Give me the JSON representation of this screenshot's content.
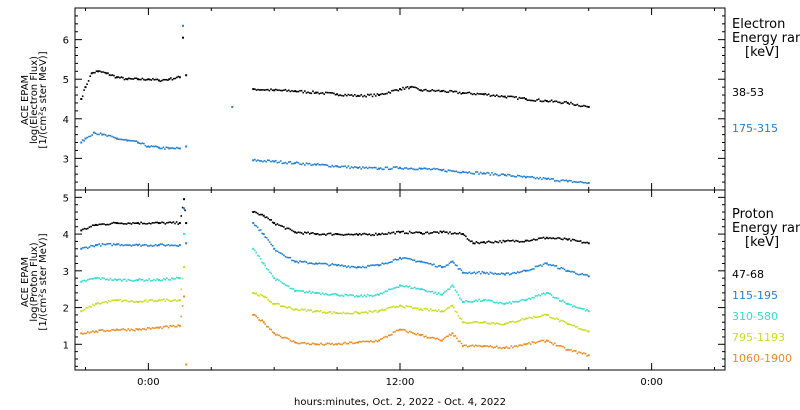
{
  "chart_data": [
    {
      "type": "scatter",
      "panel": "electron",
      "ylabel_lines": [
        "ACE EPAM",
        "log(Electron Flux)",
        "[1/(cm²s ster MeV)]"
      ],
      "legend_title": [
        "Electron",
        "Energy range",
        "[keV]"
      ],
      "ylim": [
        2.2,
        6.8
      ],
      "yticks": [
        3,
        4,
        5,
        6
      ],
      "series": [
        {
          "name": "38-53",
          "color": "#000000",
          "points": [
            [
              -3.2,
              4.5
            ],
            [
              -3.0,
              4.8
            ],
            [
              -2.7,
              5.15
            ],
            [
              -2.4,
              5.2
            ],
            [
              -2.0,
              5.15
            ],
            [
              -1.5,
              5.05
            ],
            [
              -1.0,
              5.0
            ],
            [
              -0.5,
              5.0
            ],
            [
              0.0,
              5.0
            ],
            [
              0.5,
              4.97
            ],
            [
              1.0,
              5.0
            ],
            [
              1.5,
              5.05
            ],
            [
              1.65,
              6.05
            ],
            [
              1.8,
              5.1
            ]
          ],
          "points_b": [
            [
              5.0,
              4.75
            ],
            [
              6.0,
              4.72
            ],
            [
              7.0,
              4.7
            ],
            [
              8.0,
              4.66
            ],
            [
              9.0,
              4.62
            ],
            [
              10.0,
              4.58
            ],
            [
              11.0,
              4.6
            ],
            [
              12.0,
              4.75
            ],
            [
              12.5,
              4.8
            ],
            [
              13.0,
              4.72
            ],
            [
              14.0,
              4.7
            ],
            [
              15.0,
              4.65
            ],
            [
              16.0,
              4.62
            ],
            [
              17.0,
              4.56
            ],
            [
              18.0,
              4.5
            ],
            [
              19.0,
              4.45
            ],
            [
              20.0,
              4.4
            ],
            [
              21.0,
              4.3
            ]
          ]
        },
        {
          "name": "175-315",
          "color": "#1f7fd4",
          "points": [
            [
              -3.2,
              3.4
            ],
            [
              -3.0,
              3.5
            ],
            [
              -2.6,
              3.65
            ],
            [
              -2.2,
              3.6
            ],
            [
              -1.5,
              3.5
            ],
            [
              -1.0,
              3.45
            ],
            [
              -0.5,
              3.4
            ],
            [
              0.0,
              3.3
            ],
            [
              0.5,
              3.27
            ],
            [
              1.0,
              3.25
            ],
            [
              1.5,
              3.25
            ],
            [
              1.65,
              6.35
            ],
            [
              1.8,
              3.3
            ],
            [
              4.0,
              4.3
            ]
          ],
          "points_b": [
            [
              5.0,
              2.95
            ],
            [
              6.0,
              2.92
            ],
            [
              7.0,
              2.88
            ],
            [
              8.0,
              2.84
            ],
            [
              9.0,
              2.8
            ],
            [
              10.0,
              2.76
            ],
            [
              11.0,
              2.74
            ],
            [
              12.0,
              2.76
            ],
            [
              13.0,
              2.74
            ],
            [
              14.0,
              2.7
            ],
            [
              15.0,
              2.66
            ],
            [
              16.0,
              2.62
            ],
            [
              17.0,
              2.58
            ],
            [
              18.0,
              2.52
            ],
            [
              19.0,
              2.48
            ],
            [
              20.0,
              2.42
            ],
            [
              21.0,
              2.38
            ]
          ]
        }
      ]
    },
    {
      "type": "scatter",
      "panel": "proton",
      "ylabel_lines": [
        "ACE EPAM",
        "log(Proton Flux)",
        "[1/(cm²s ster MeV)]"
      ],
      "legend_title": [
        "Proton",
        "Energy range",
        "[keV]"
      ],
      "ylim": [
        0.3,
        5.2
      ],
      "yticks": [
        1,
        2,
        3,
        4,
        5
      ],
      "series": [
        {
          "name": "47-68",
          "color": "#000000",
          "points": [
            [
              -3.2,
              4.1
            ],
            [
              -2.5,
              4.25
            ],
            [
              -1.5,
              4.3
            ],
            [
              -0.5,
              4.3
            ],
            [
              0.5,
              4.3
            ],
            [
              1.5,
              4.3
            ],
            [
              1.7,
              4.95
            ],
            [
              1.8,
              4.3
            ]
          ],
          "points_b": [
            [
              5.0,
              4.6
            ],
            [
              5.5,
              4.5
            ],
            [
              6.0,
              4.3
            ],
            [
              7.0,
              4.05
            ],
            [
              8.0,
              4.0
            ],
            [
              9.0,
              4.0
            ],
            [
              10.0,
              3.98
            ],
            [
              11.0,
              4.0
            ],
            [
              12.0,
              4.05
            ],
            [
              13.0,
              4.03
            ],
            [
              14.0,
              4.05
            ],
            [
              15.0,
              4.0
            ],
            [
              15.5,
              3.75
            ],
            [
              16.0,
              3.78
            ],
            [
              17.0,
              3.8
            ],
            [
              18.0,
              3.82
            ],
            [
              19.0,
              3.9
            ],
            [
              20.0,
              3.85
            ],
            [
              21.0,
              3.75
            ]
          ]
        },
        {
          "name": "115-195",
          "color": "#1f7fd4",
          "points": [
            [
              -3.2,
              3.6
            ],
            [
              -2.5,
              3.7
            ],
            [
              -1.5,
              3.72
            ],
            [
              -0.5,
              3.7
            ],
            [
              0.5,
              3.7
            ],
            [
              1.5,
              3.7
            ],
            [
              1.7,
              4.7
            ],
            [
              1.8,
              3.75
            ]
          ],
          "points_b": [
            [
              5.0,
              4.3
            ],
            [
              5.5,
              4.0
            ],
            [
              6.0,
              3.6
            ],
            [
              7.0,
              3.25
            ],
            [
              8.0,
              3.2
            ],
            [
              9.0,
              3.15
            ],
            [
              10.0,
              3.1
            ],
            [
              11.0,
              3.15
            ],
            [
              12.0,
              3.35
            ],
            [
              13.0,
              3.25
            ],
            [
              14.0,
              3.1
            ],
            [
              14.5,
              3.25
            ],
            [
              15.0,
              2.95
            ],
            [
              16.0,
              2.95
            ],
            [
              17.0,
              2.9
            ],
            [
              18.0,
              3.0
            ],
            [
              19.0,
              3.2
            ],
            [
              20.0,
              3.0
            ],
            [
              21.0,
              2.85
            ]
          ]
        },
        {
          "name": "310-580",
          "color": "#33dcd4",
          "points": [
            [
              -3.2,
              2.7
            ],
            [
              -2.5,
              2.8
            ],
            [
              -1.5,
              2.75
            ],
            [
              -0.5,
              2.75
            ],
            [
              0.5,
              2.75
            ],
            [
              1.5,
              2.8
            ],
            [
              1.7,
              4.0
            ]
          ],
          "points_b": [
            [
              5.0,
              3.6
            ],
            [
              5.5,
              3.2
            ],
            [
              6.0,
              2.8
            ],
            [
              7.0,
              2.45
            ],
            [
              8.0,
              2.4
            ],
            [
              9.0,
              2.35
            ],
            [
              10.0,
              2.3
            ],
            [
              11.0,
              2.35
            ],
            [
              12.0,
              2.6
            ],
            [
              13.0,
              2.5
            ],
            [
              14.0,
              2.35
            ],
            [
              14.5,
              2.6
            ],
            [
              15.0,
              2.15
            ],
            [
              16.0,
              2.2
            ],
            [
              17.0,
              2.1
            ],
            [
              18.0,
              2.2
            ],
            [
              19.0,
              2.4
            ],
            [
              20.0,
              2.1
            ],
            [
              21.0,
              1.9
            ]
          ]
        },
        {
          "name": "795-1193",
          "color": "#c8dc1e",
          "points": [
            [
              -3.2,
              1.9
            ],
            [
              -2.5,
              2.1
            ],
            [
              -1.5,
              2.2
            ],
            [
              -0.5,
              2.15
            ],
            [
              0.5,
              2.2
            ],
            [
              1.5,
              2.2
            ],
            [
              1.7,
              3.1
            ]
          ],
          "points_b": [
            [
              5.0,
              2.4
            ],
            [
              5.5,
              2.3
            ],
            [
              6.0,
              2.1
            ],
            [
              7.0,
              1.95
            ],
            [
              8.0,
              1.9
            ],
            [
              9.0,
              1.85
            ],
            [
              10.0,
              1.85
            ],
            [
              11.0,
              1.9
            ],
            [
              12.0,
              2.05
            ],
            [
              13.0,
              1.95
            ],
            [
              14.0,
              1.9
            ],
            [
              14.5,
              2.05
            ],
            [
              15.0,
              1.6
            ],
            [
              16.0,
              1.6
            ],
            [
              17.0,
              1.55
            ],
            [
              18.0,
              1.7
            ],
            [
              19.0,
              1.8
            ],
            [
              20.0,
              1.55
            ],
            [
              21.0,
              1.35
            ]
          ]
        },
        {
          "name": "1060-1900",
          "color": "#f08a1e",
          "points": [
            [
              -3.2,
              1.3
            ],
            [
              -2.5,
              1.35
            ],
            [
              -1.5,
              1.4
            ],
            [
              -0.5,
              1.4
            ],
            [
              0.5,
              1.45
            ],
            [
              1.5,
              1.5
            ],
            [
              1.7,
              2.3
            ],
            [
              1.8,
              0.45
            ]
          ],
          "points_b": [
            [
              5.0,
              1.8
            ],
            [
              5.5,
              1.6
            ],
            [
              6.0,
              1.3
            ],
            [
              7.0,
              1.05
            ],
            [
              8.0,
              1.0
            ],
            [
              9.0,
              1.0
            ],
            [
              10.0,
              1.05
            ],
            [
              11.0,
              1.1
            ],
            [
              12.0,
              1.4
            ],
            [
              13.0,
              1.25
            ],
            [
              14.0,
              1.1
            ],
            [
              14.5,
              1.3
            ],
            [
              15.0,
              0.95
            ],
            [
              16.0,
              0.95
            ],
            [
              17.0,
              0.9
            ],
            [
              18.0,
              1.0
            ],
            [
              19.0,
              1.1
            ],
            [
              20.0,
              0.85
            ],
            [
              21.0,
              0.7
            ]
          ]
        }
      ]
    }
  ],
  "xaxis": {
    "xlim": [
      -3.5,
      27.5
    ],
    "ticks": [
      0,
      12,
      24
    ],
    "tick_labels": [
      "0:00",
      "12:00",
      "0:00"
    ],
    "xlabel": "hours:minutes, Oct.  2, 2022 - Oct.  4, 2022"
  }
}
